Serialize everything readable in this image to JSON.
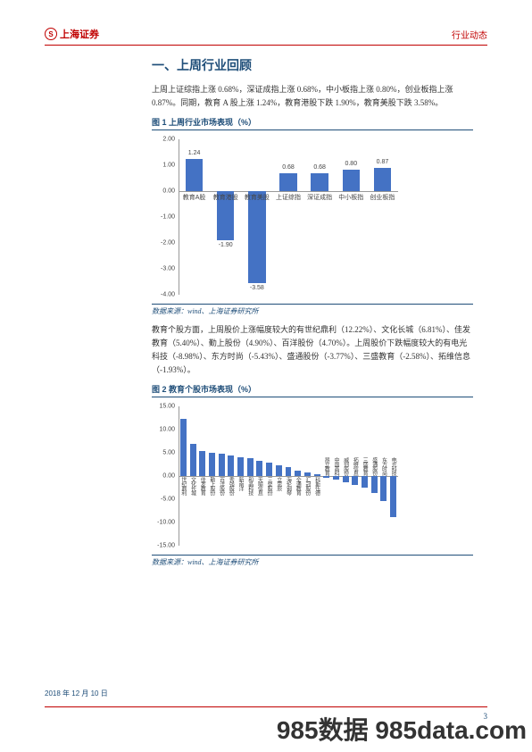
{
  "header": {
    "logo_text": "上海证券",
    "doc_type": "行业动态"
  },
  "section_title": "一、上周行业回顾",
  "para1": "上周上证综指上涨 0.68%，深证成指上涨 0.68%，中小板指上涨 0.80%，创业板指上涨 0.87%。同期，教育 A 股上涨 1.24%，教育港股下跌 1.90%，教育美股下跌 3.58%。",
  "chart1": {
    "title": "图 1 上周行业市场表现（%）",
    "source": "数据来源：wind、上海证券研究所",
    "ytick_min": -4.0,
    "ytick_max": 2.0,
    "ytick_step": 1.0,
    "categories": [
      "教育A股",
      "教育港股",
      "教育美股",
      "上证综指",
      "深证成指",
      "中小板指",
      "创业板指"
    ],
    "values": [
      1.24,
      -1.9,
      -3.58,
      0.68,
      0.68,
      0.8,
      0.87
    ],
    "labels": [
      "1.24",
      "-1.90",
      "-3.58",
      "0.68",
      "0.68",
      "0.80",
      "0.87"
    ],
    "bar_color": "#4472c4",
    "axis_color": "#999999",
    "text_color": "#444444",
    "bar_width_ratio": 0.55
  },
  "para2": "教育个股方面，上周股价上涨幅度较大的有世纪鼎利（12.22%）、文化长城（6.81%）、佳发教育（5.40%）、勤上股份（4.90%）、百洋股份（4.70%）。上周股价下跌幅度较大的有电光科技（-8.98%）、东方时尚（-5.43%）、盛通股份（-3.77%）、三盛教育（-2.58%）、拓维信息（-1.93%）。",
  "chart2": {
    "title": "图 2 教育个股市场表现（%）",
    "source": "数据来源：wind、上海证券研究所",
    "ytick_min": -15.0,
    "ytick_max": 15.0,
    "ytick_step": 5.0,
    "categories": [
      "世纪鼎利",
      "文化长城",
      "佳发教育",
      "勤上股份",
      "百洋股份",
      "秀强股份",
      "新南洋",
      "和晶科技",
      "天喻信息",
      "三垒股份",
      "立思辰",
      "海伦钢琴",
      "全通教育",
      "汇冠股份",
      "科斯伍德",
      "昂立教育",
      "中国高科",
      "威创股份",
      "拓维信息",
      "三盛教育",
      "盛通股份",
      "东方时尚",
      "电光科技"
    ],
    "values": [
      12.22,
      6.81,
      5.4,
      4.9,
      4.7,
      4.3,
      4.0,
      3.8,
      3.2,
      2.8,
      2.3,
      1.8,
      1.2,
      0.7,
      0.3,
      -0.4,
      -0.9,
      -1.4,
      -1.93,
      -2.58,
      -3.77,
      -5.43,
      -8.98
    ],
    "bar_color": "#4472c4",
    "axis_color": "#999999",
    "text_color": "#444444",
    "bar_width_ratio": 0.65
  },
  "footer": {
    "date": "2018 年 12 月 10 日",
    "page": "3"
  },
  "watermark": "985数据 985data.com"
}
